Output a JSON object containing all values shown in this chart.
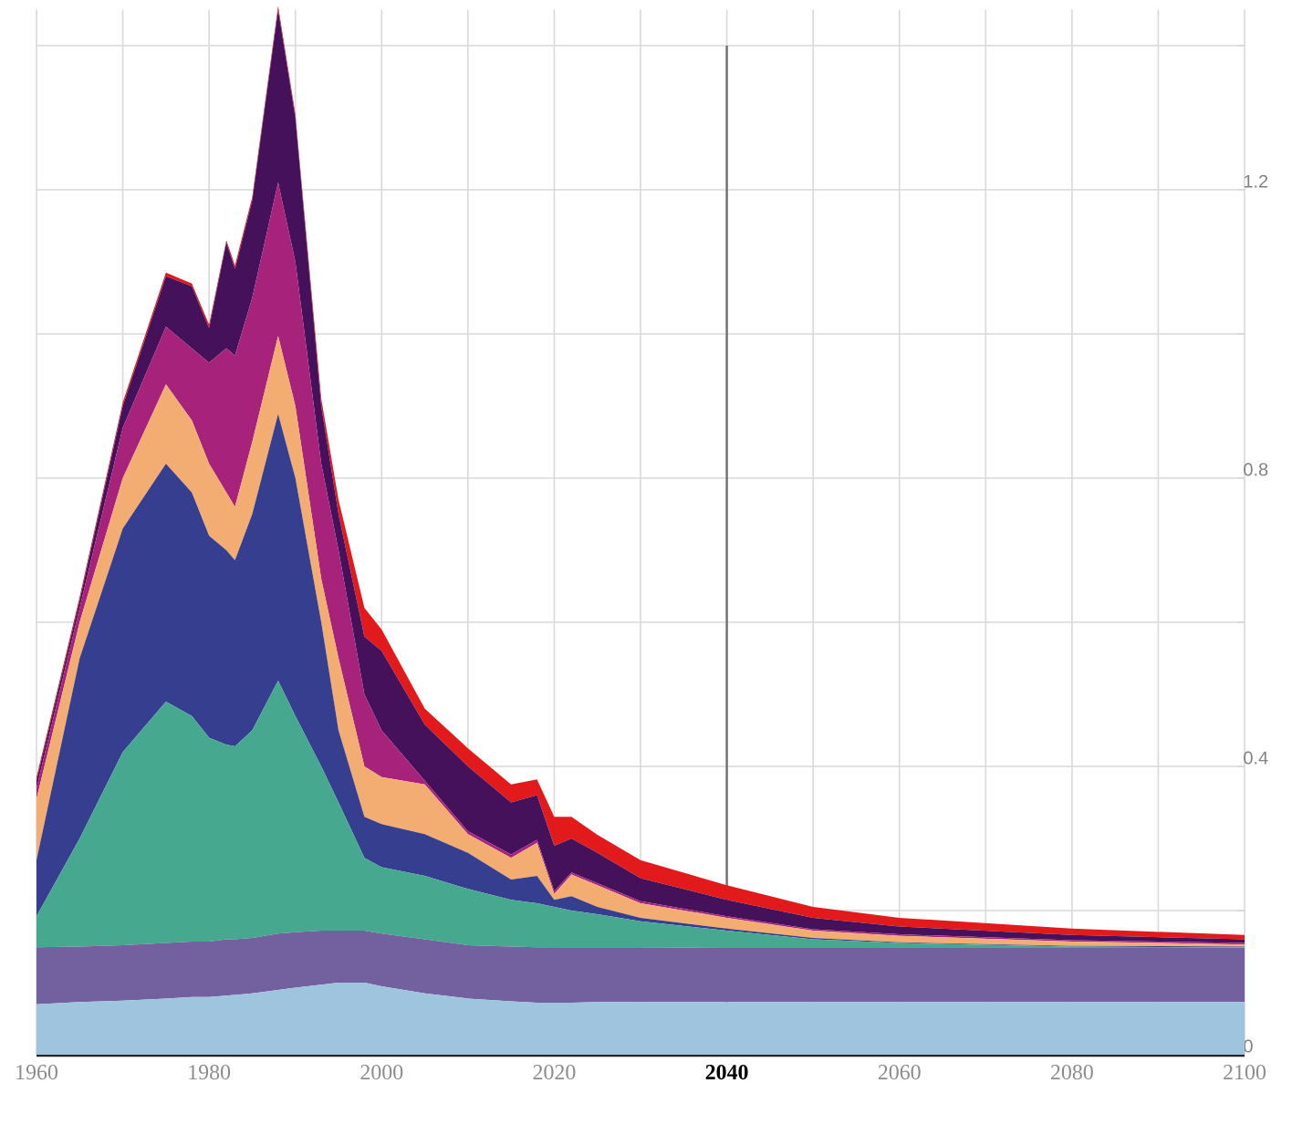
{
  "chart_data": {
    "type": "area",
    "stacked": true,
    "grid": true,
    "x": [
      1960,
      1965,
      1970,
      1975,
      1978,
      1980,
      1982,
      1983,
      1985,
      1988,
      1990,
      1993,
      1995,
      1998,
      2000,
      2005,
      2010,
      2015,
      2018,
      2020,
      2022,
      2025,
      2030,
      2040,
      2050,
      2060,
      2080,
      2100
    ],
    "series": [
      {
        "color": "#9ec4de",
        "values": [
          0.07,
          0.073,
          0.075,
          0.078,
          0.08,
          0.08,
          0.082,
          0.083,
          0.085,
          0.09,
          0.093,
          0.097,
          0.1,
          0.1,
          0.095,
          0.085,
          0.078,
          0.074,
          0.072,
          0.072,
          0.072,
          0.073,
          0.073,
          0.073,
          0.073,
          0.073,
          0.073,
          0.073
        ]
      },
      {
        "color": "#72609f",
        "values": [
          0.079,
          0.077,
          0.077,
          0.077,
          0.077,
          0.077,
          0.078,
          0.077,
          0.077,
          0.078,
          0.077,
          0.075,
          0.072,
          0.072,
          0.073,
          0.075,
          0.074,
          0.076,
          0.077,
          0.077,
          0.077,
          0.076,
          0.076,
          0.075,
          0.075,
          0.075,
          0.075,
          0.075
        ]
      },
      {
        "color": "#46a98f",
        "values": [
          0.043,
          0.15,
          0.268,
          0.335,
          0.313,
          0.283,
          0.27,
          0.268,
          0.288,
          0.351,
          0.3,
          0.228,
          0.178,
          0.101,
          0.092,
          0.088,
          0.078,
          0.065,
          0.061,
          0.056,
          0.051,
          0.046,
          0.036,
          0.024,
          0.012,
          0.007,
          0.002,
          0.001
        ]
      },
      {
        "color": "#363f8f",
        "values": [
          0.078,
          0.25,
          0.31,
          0.33,
          0.31,
          0.28,
          0.27,
          0.258,
          0.3,
          0.37,
          0.33,
          0.2,
          0.1,
          0.057,
          0.06,
          0.058,
          0.05,
          0.028,
          0.038,
          0.01,
          0.02,
          0.01,
          0.005,
          0.003,
          0.002,
          0.001,
          0.001,
          0.001
        ]
      },
      {
        "color": "#f3ad72",
        "values": [
          0.085,
          0.05,
          0.07,
          0.11,
          0.1,
          0.1,
          0.08,
          0.074,
          0.1,
          0.108,
          0.1,
          0.06,
          0.1,
          0.07,
          0.065,
          0.069,
          0.026,
          0.03,
          0.046,
          0.008,
          0.03,
          0.03,
          0.02,
          0.015,
          0.01,
          0.009,
          0.006,
          0.003
        ]
      },
      {
        "color": "#a7237b",
        "values": [
          0.015,
          0.02,
          0.07,
          0.08,
          0.1,
          0.14,
          0.2,
          0.21,
          0.2,
          0.213,
          0.2,
          0.16,
          0.15,
          0.1,
          0.065,
          0.005,
          0.004,
          0.005,
          0.004,
          0.004,
          0.003,
          0.003,
          0.003,
          0.002,
          0.002,
          0.002,
          0.002,
          0.002
        ]
      },
      {
        "color": "#46115b",
        "values": [
          0.01,
          0.01,
          0.03,
          0.07,
          0.086,
          0.048,
          0.147,
          0.12,
          0.135,
          0.24,
          0.2,
          0.08,
          0.05,
          0.08,
          0.11,
          0.078,
          0.09,
          0.072,
          0.062,
          0.063,
          0.047,
          0.042,
          0.032,
          0.023,
          0.016,
          0.011,
          0.007,
          0.005
        ]
      },
      {
        "color": "#e31a1c",
        "values": [
          0.005,
          0.005,
          0.005,
          0.005,
          0.004,
          0.005,
          0.003,
          0.005,
          0.005,
          0.005,
          0.005,
          0.01,
          0.02,
          0.04,
          0.03,
          0.022,
          0.025,
          0.025,
          0.022,
          0.04,
          0.03,
          0.025,
          0.025,
          0.02,
          0.015,
          0.012,
          0.009,
          0.006
        ]
      }
    ],
    "xlim": [
      1960,
      2100
    ],
    "ylim": [
      0,
      1.45
    ],
    "xticks": [
      1960,
      {
        "value": 1970,
        "label": null
      },
      1980,
      {
        "value": 1990,
        "label": null
      },
      2000,
      {
        "value": 2010,
        "label": null
      },
      2020,
      {
        "value": 2030,
        "label": null
      },
      2040,
      {
        "value": 2050,
        "label": null
      },
      2060,
      {
        "value": 2070,
        "label": null
      },
      2080,
      {
        "value": 2090,
        "label": null
      },
      2100
    ],
    "yticks": [
      0,
      {
        "value": 0.2,
        "label": null
      },
      0.4,
      {
        "value": 0.6,
        "label": null
      },
      0.8,
      {
        "value": 1.0,
        "label": null
      },
      1.2,
      {
        "value": 1.4,
        "label": null
      }
    ],
    "ref_lines": [
      {
        "axis": "x",
        "value": 2040,
        "color": "#707070"
      }
    ]
  }
}
